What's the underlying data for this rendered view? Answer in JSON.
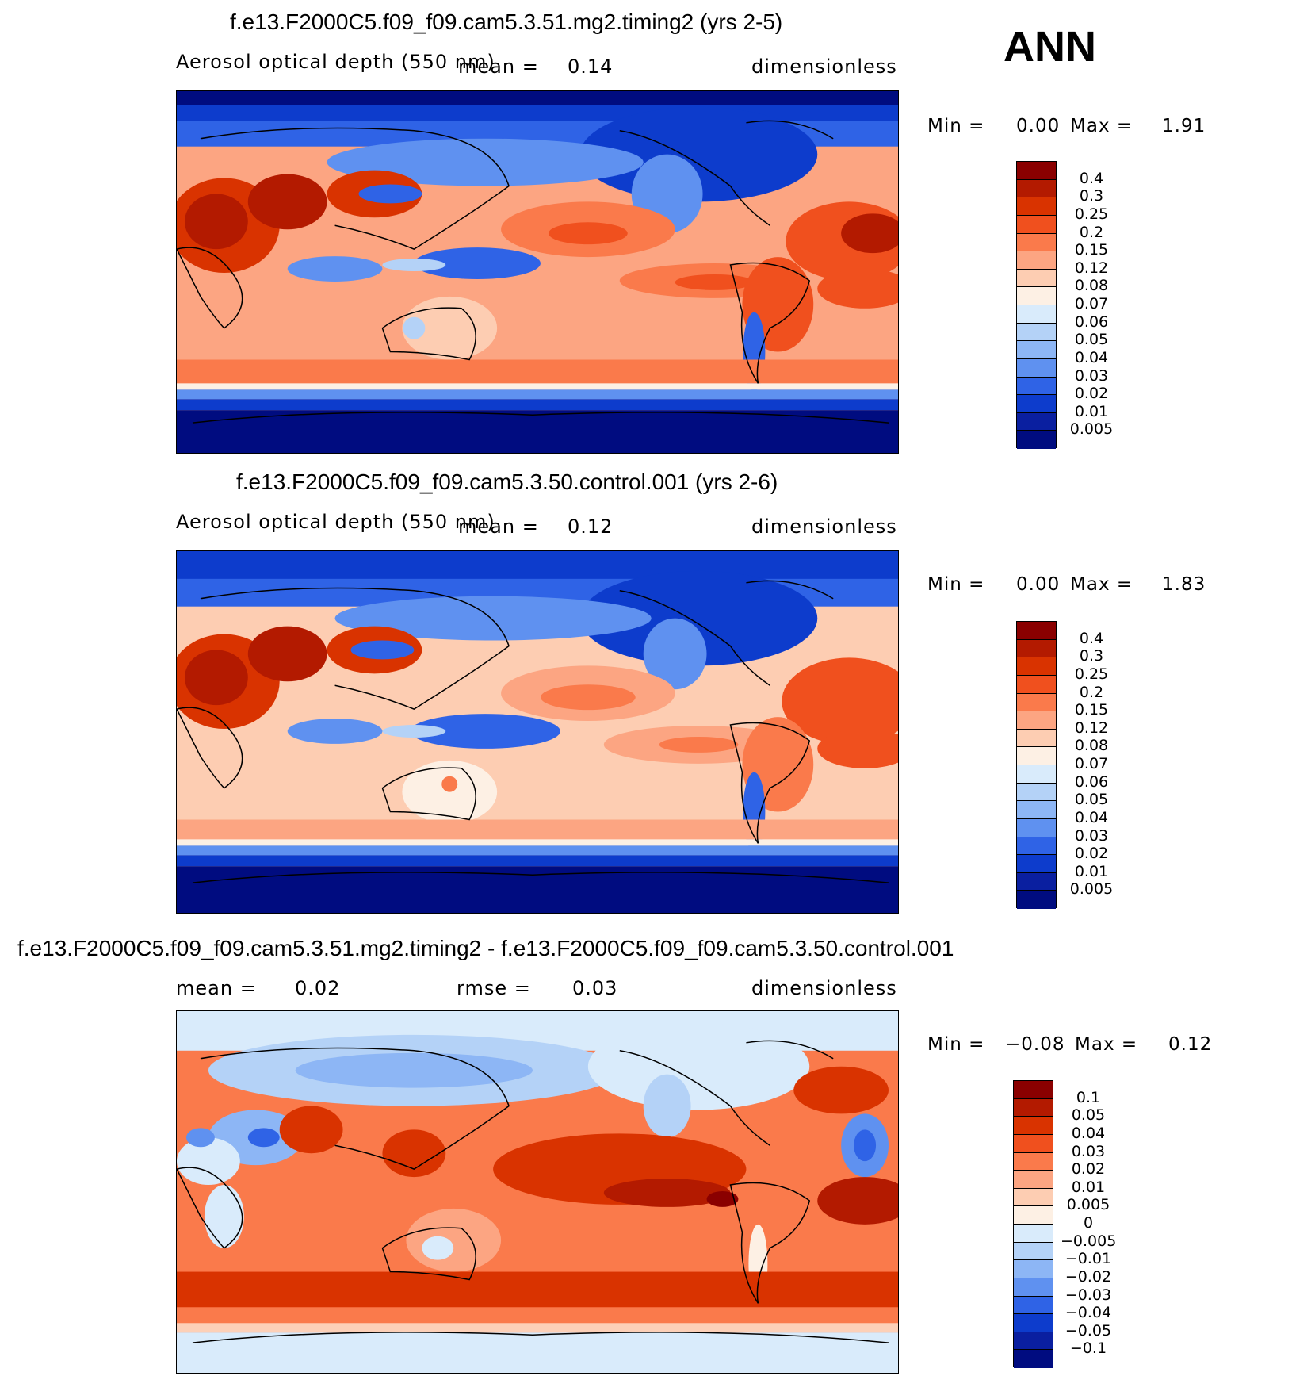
{
  "season": "ANN",
  "chart_data": [
    {
      "type": "heatmap",
      "title": "f.e13.F2000C5.f09_f09.cam5.3.51.mg2.timing2 (yrs 2-5)",
      "variable": "Aerosol optical depth (550 nm)",
      "mean_label": "mean =",
      "mean": "0.14",
      "units": "dimensionless",
      "min_label": "Min =",
      "min": "0.00",
      "max_label": "Max =",
      "max": "1.91",
      "levels": [
        "0.4",
        "0.3",
        "0.25",
        "0.2",
        "0.15",
        "0.12",
        "0.08",
        "0.07",
        "0.06",
        "0.05",
        "0.04",
        "0.03",
        "0.02",
        "0.01",
        "0.005"
      ],
      "colors": [
        "#8a0000",
        "#b31a00",
        "#d93300",
        "#f0501e",
        "#fa7a4b",
        "#fca582",
        "#fdcdb2",
        "#fdf0e4",
        "#d9ebfb",
        "#b4d2f7",
        "#8db6f5",
        "#5f91f0",
        "#2f63e6",
        "#0d3ccc",
        "#0a1fa0",
        "#000c80"
      ]
    },
    {
      "type": "heatmap",
      "title": "f.e13.F2000C5.f09_f09.cam5.3.50.control.001 (yrs 2-6)",
      "variable": "Aerosol optical depth (550 nm)",
      "mean_label": "mean =",
      "mean": "0.12",
      "units": "dimensionless",
      "min_label": "Min =",
      "min": "0.00",
      "max_label": "Max =",
      "max": "1.83",
      "levels": [
        "0.4",
        "0.3",
        "0.25",
        "0.2",
        "0.15",
        "0.12",
        "0.08",
        "0.07",
        "0.06",
        "0.05",
        "0.04",
        "0.03",
        "0.02",
        "0.01",
        "0.005"
      ],
      "colors": [
        "#8a0000",
        "#b31a00",
        "#d93300",
        "#f0501e",
        "#fa7a4b",
        "#fca582",
        "#fdcdb2",
        "#fdf0e4",
        "#d9ebfb",
        "#b4d2f7",
        "#8db6f5",
        "#5f91f0",
        "#2f63e6",
        "#0d3ccc",
        "#0a1fa0",
        "#000c80"
      ]
    },
    {
      "type": "heatmap",
      "title": "f.e13.F2000C5.f09_f09.cam5.3.51.mg2.timing2 - f.e13.F2000C5.f09_f09.cam5.3.50.control.001",
      "mean_label": "mean =",
      "mean": "0.02",
      "rmse_label": "rmse =",
      "rmse": "0.03",
      "units": "dimensionless",
      "min_label": "Min =",
      "min": "−0.08",
      "max_label": "Max =",
      "max": "0.12",
      "levels": [
        "0.1",
        "0.05",
        "0.04",
        "0.03",
        "0.02",
        "0.01",
        "0.005",
        "0",
        "−0.005",
        "−0.01",
        "−0.02",
        "−0.03",
        "−0.04",
        "−0.05",
        "−0.1"
      ],
      "colors": [
        "#8a0000",
        "#b31a00",
        "#d93300",
        "#f0501e",
        "#fa7a4b",
        "#fca582",
        "#fdcdb2",
        "#fdf0e4",
        "#d9ebfb",
        "#b4d2f7",
        "#8db6f5",
        "#5f91f0",
        "#2f63e6",
        "#0d3ccc",
        "#0a1fa0",
        "#000c80"
      ]
    }
  ]
}
